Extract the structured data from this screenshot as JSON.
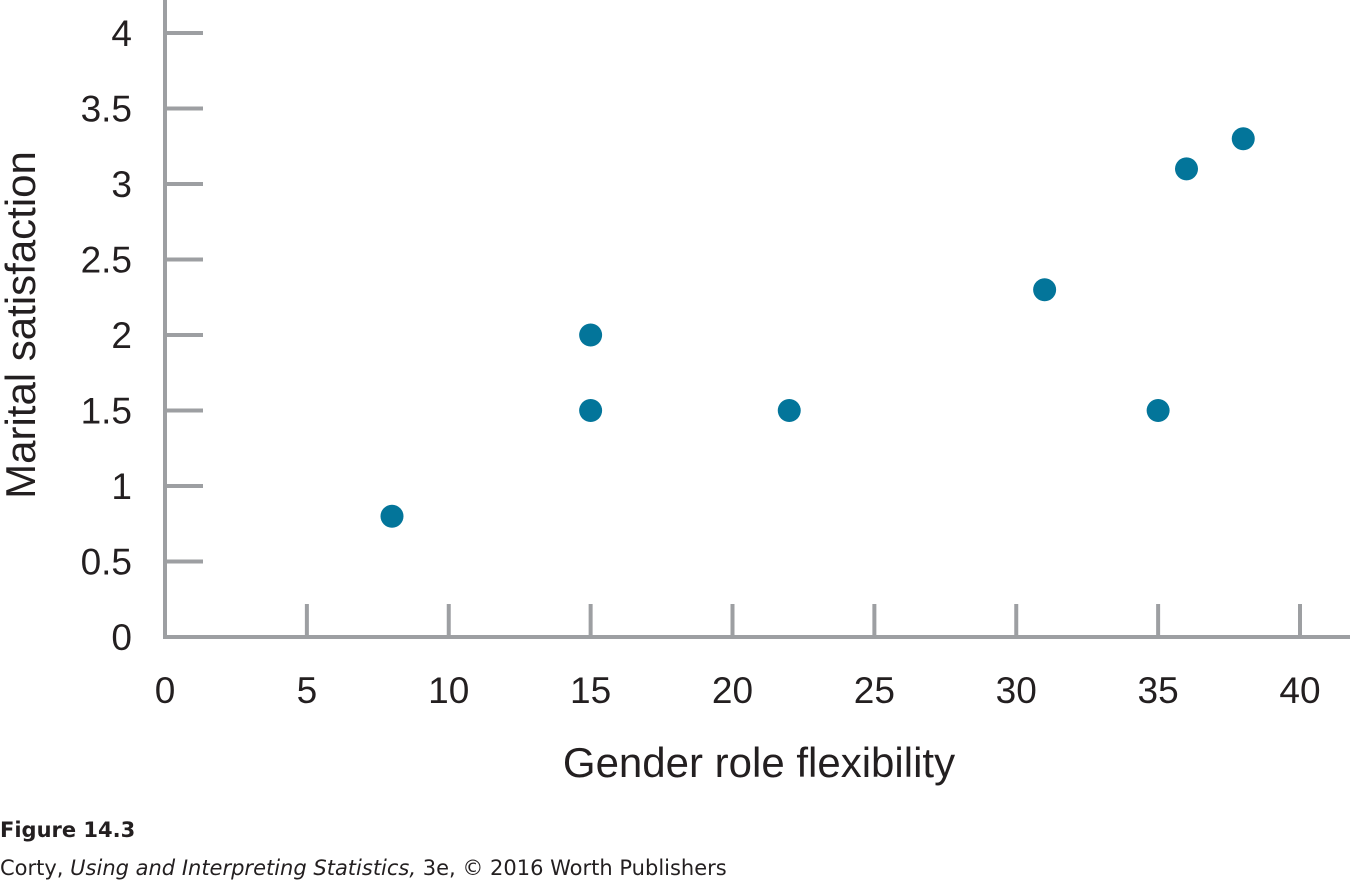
{
  "chart_data": {
    "type": "scatter",
    "xlabel": "Gender role flexibility",
    "ylabel": "Marital satisfaction",
    "xlim": [
      0,
      40
    ],
    "ylim": [
      0,
      4
    ],
    "x_ticks": [
      0,
      5,
      10,
      15,
      20,
      25,
      30,
      35,
      40
    ],
    "y_ticks": [
      0,
      0.5,
      1,
      1.5,
      2,
      2.5,
      3,
      3.5,
      4
    ],
    "grid": false,
    "points": [
      {
        "x": 8,
        "y": 0.8
      },
      {
        "x": 15,
        "y": 2.0
      },
      {
        "x": 15,
        "y": 1.5
      },
      {
        "x": 22,
        "y": 1.5
      },
      {
        "x": 31,
        "y": 2.3
      },
      {
        "x": 35,
        "y": 1.5
      },
      {
        "x": 36,
        "y": 3.1
      },
      {
        "x": 38,
        "y": 3.3
      }
    ],
    "marker_color": "#03759a",
    "axis_color": "#9d9fa2"
  },
  "caption": {
    "figure_label": "Figure 14.3",
    "credit_author": "Corty, ",
    "credit_title": "Using and Interpreting Statistics,",
    "credit_rest": " 3e, © 2016 Worth Publishers"
  }
}
